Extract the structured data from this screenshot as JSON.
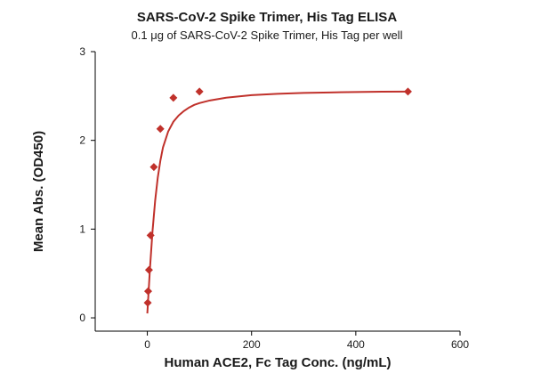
{
  "chart_data": {
    "type": "scatter",
    "title": "SARS-CoV-2 Spike Trimer, His Tag ELISA",
    "subtitle": "0.1 μg of SARS-CoV-2 Spike Trimer, His Tag per well",
    "xlabel": "Human ACE2, Fc Tag Conc. (ng/mL)",
    "ylabel": "Mean Abs. (OD450)",
    "xlim": [
      -100,
      600
    ],
    "ylim": [
      -0.15,
      3
    ],
    "xticks": [
      0,
      200,
      400,
      600
    ],
    "yticks": [
      0,
      1,
      2,
      3
    ],
    "grid": false,
    "legend": "none",
    "color": "#c0312b",
    "series": [
      {
        "marker": "diamond",
        "x": [
          0.78,
          1.56,
          3.13,
          6.25,
          12.5,
          25,
          50,
          100,
          500
        ],
        "y": [
          0.17,
          0.3,
          0.54,
          0.93,
          1.7,
          2.13,
          2.48,
          2.55,
          2.55
        ]
      }
    ],
    "fit_curve": {
      "x": [
        0,
        5,
        10,
        15,
        20,
        25,
        30,
        40,
        50,
        60,
        70,
        80,
        90,
        100,
        120,
        150,
        200,
        250,
        300,
        350,
        400,
        450,
        500
      ],
      "y": [
        0.05,
        0.55,
        0.98,
        1.32,
        1.58,
        1.77,
        1.92,
        2.1,
        2.21,
        2.28,
        2.33,
        2.37,
        2.4,
        2.42,
        2.45,
        2.48,
        2.51,
        2.525,
        2.535,
        2.54,
        2.545,
        2.548,
        2.55
      ]
    }
  }
}
